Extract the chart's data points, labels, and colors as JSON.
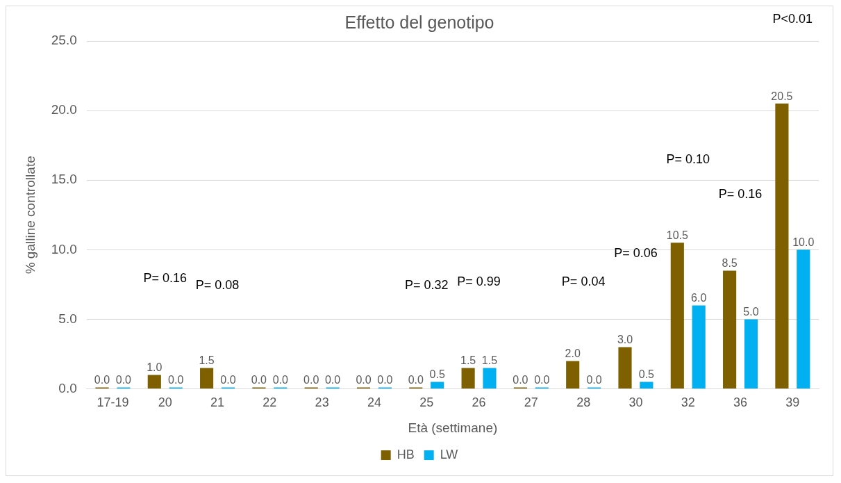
{
  "chart_data": {
    "type": "bar",
    "title": "Effetto del genotipo",
    "xlabel": "Età (settimane)",
    "ylabel": "% galline controllate",
    "categories": [
      "17-19",
      "20",
      "21",
      "22",
      "23",
      "24",
      "25",
      "26",
      "27",
      "28",
      "30",
      "32",
      "36",
      "39"
    ],
    "series": [
      {
        "name": "HB",
        "color": "#7f6000",
        "values": [
          0,
          1,
          1.5,
          0,
          0,
          0,
          0,
          1.5,
          0,
          2,
          3,
          10.5,
          8.5,
          20.5
        ],
        "value_labels": [
          "0.0",
          "1.0",
          "1.5",
          "0.0",
          "0.0",
          "0.0",
          "0.0",
          "1.5",
          "0.0",
          "2.0",
          "3.0",
          "10.5",
          "8.5",
          "20.5"
        ]
      },
      {
        "name": "LW",
        "color": "#00b0f0",
        "values": [
          0,
          0,
          0,
          0,
          0,
          0,
          0.5,
          1.5,
          0,
          0,
          0.5,
          6,
          5,
          10
        ],
        "value_labels": [
          "0.0",
          "0.0",
          "0.0",
          "0.0",
          "0.0",
          "0.0",
          "0.5",
          "1.5",
          "0.0",
          "0.0",
          "0.5",
          "6.0",
          "5.0",
          "10.0"
        ]
      }
    ],
    "ylim": [
      0,
      25
    ],
    "yticks": [
      {
        "value": 0,
        "label": "0.0"
      },
      {
        "value": 5,
        "label": "5.0"
      },
      {
        "value": 10,
        "label": "10.0"
      },
      {
        "value": 15,
        "label": "15.0"
      },
      {
        "value": 20,
        "label": "20.0"
      },
      {
        "value": 25,
        "label": "25.0"
      }
    ],
    "grid": "y",
    "legend": "bottom",
    "annotations": [
      "P= 0.16",
      "P= 0.08",
      "P= 0.32",
      "P= 0.99",
      "P= 0.04",
      "P= 0.06",
      "P= 0.10",
      "P= 0.16",
      "P<0.01"
    ]
  }
}
